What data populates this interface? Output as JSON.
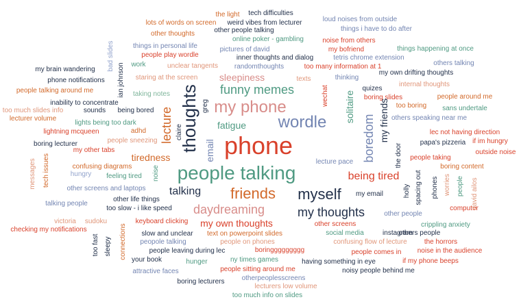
{
  "colors": {
    "red": "#d9412b",
    "orange": "#d2692a",
    "teal": "#4f9a82",
    "navy": "#22304a",
    "blue": "#7385b2",
    "pink": "#d88d8a",
    "salmon": "#e0967a",
    "sage": "#7fb59b",
    "gray": "#a0a0a0",
    "lightblue": "#92a3cc"
  },
  "words": [
    {
      "text": "the light",
      "color": "orange"
    },
    {
      "text": "tech difficulties",
      "color": "navy"
    },
    {
      "text": "loud noises from outside",
      "color": "blue"
    },
    {
      "text": "lots of words on screen",
      "color": "orange"
    },
    {
      "text": "weird vibes from lecturer",
      "color": "navy"
    },
    {
      "text": "things i have to do after",
      "color": "blue"
    },
    {
      "text": "other thoughts",
      "color": "orange"
    },
    {
      "text": "other people talking",
      "color": "navy"
    },
    {
      "text": "online poker - gambling",
      "color": "teal"
    },
    {
      "text": "noise from others",
      "color": "red"
    },
    {
      "text": "things in personal life",
      "color": "blue"
    },
    {
      "text": "pictures of david",
      "color": "blue"
    },
    {
      "text": "my bofriend",
      "color": "red"
    },
    {
      "text": "things happening at once",
      "color": "teal"
    },
    {
      "text": "people play wordle",
      "color": "red"
    },
    {
      "text": "inner thoughts and dialog",
      "color": "navy"
    },
    {
      "text": "tetris chrome extension",
      "color": "blue"
    },
    {
      "text": "work",
      "color": "teal"
    },
    {
      "text": "unclear tangents",
      "color": "salmon"
    },
    {
      "text": "randomthoughts",
      "color": "blue"
    },
    {
      "text": "too many information at 1",
      "color": "red"
    },
    {
      "text": "others talking",
      "color": "blue"
    },
    {
      "text": "my brain wandering",
      "color": "navy"
    },
    {
      "text": "my own drifting thoughts",
      "color": "navy"
    },
    {
      "text": "staring at the screen",
      "color": "salmon"
    },
    {
      "text": "sleepiness",
      "color": "pink"
    },
    {
      "text": "texts",
      "color": "salmon"
    },
    {
      "text": "thinking",
      "color": "blue"
    },
    {
      "text": "phone notifications",
      "color": "navy"
    },
    {
      "text": "internal thoughts",
      "color": "salmon"
    },
    {
      "text": "people talking around me",
      "color": "orange"
    },
    {
      "text": "funny memes",
      "color": "teal"
    },
    {
      "text": "quizes",
      "color": "navy"
    },
    {
      "text": "taking notes",
      "color": "sage"
    },
    {
      "text": "boring slides",
      "color": "red"
    },
    {
      "text": "people around me",
      "color": "orange"
    },
    {
      "text": "inability to concentrate",
      "color": "navy"
    },
    {
      "text": "my phone",
      "color": "pink"
    },
    {
      "text": "too boring",
      "color": "orange"
    },
    {
      "text": "too much slides info",
      "color": "salmon"
    },
    {
      "text": "sounds",
      "color": "navy"
    },
    {
      "text": "being bored",
      "color": "navy"
    },
    {
      "text": "sans undertale",
      "color": "teal"
    },
    {
      "text": "lecturer volume",
      "color": "orange"
    },
    {
      "text": "wordle",
      "color": "blue"
    },
    {
      "text": "others speaking near me",
      "color": "blue"
    },
    {
      "text": "lights being too dark",
      "color": "teal"
    },
    {
      "text": "fatigue",
      "color": "teal"
    },
    {
      "text": "lightning mcqueen",
      "color": "red"
    },
    {
      "text": "adhd",
      "color": "orange"
    },
    {
      "text": "lec not having direction",
      "color": "red"
    },
    {
      "text": "phone",
      "color": "red"
    },
    {
      "text": "people sneezing",
      "color": "salmon"
    },
    {
      "text": "papa's pizzeria",
      "color": "navy"
    },
    {
      "text": "if im hungry",
      "color": "red"
    },
    {
      "text": "boring lecturer",
      "color": "navy"
    },
    {
      "text": "my other tabs",
      "color": "red"
    },
    {
      "text": "outside noise",
      "color": "red"
    },
    {
      "text": "tiredness",
      "color": "orange"
    },
    {
      "text": "people taking",
      "color": "red"
    },
    {
      "text": "lecture pace",
      "color": "blue"
    },
    {
      "text": "confusing diagrams",
      "color": "orange"
    },
    {
      "text": "boring content",
      "color": "orange"
    },
    {
      "text": "people talking",
      "color": "teal"
    },
    {
      "text": "hungry",
      "color": "lightblue"
    },
    {
      "text": "feeling tired",
      "color": "teal"
    },
    {
      "text": "being tired",
      "color": "red"
    },
    {
      "text": "other screens and laptops",
      "color": "blue"
    },
    {
      "text": "talking",
      "color": "navy"
    },
    {
      "text": "friends",
      "color": "orange"
    },
    {
      "text": "myself",
      "color": "navy"
    },
    {
      "text": "other life things",
      "color": "navy"
    },
    {
      "text": "my email",
      "color": "navy"
    },
    {
      "text": "talking people",
      "color": "blue"
    },
    {
      "text": "too slow - i like speed",
      "color": "navy"
    },
    {
      "text": "daydreaming",
      "color": "pink"
    },
    {
      "text": "my thoughts",
      "color": "navy"
    },
    {
      "text": "computer",
      "color": "red"
    },
    {
      "text": "other people",
      "color": "blue"
    },
    {
      "text": "victoria",
      "color": "salmon"
    },
    {
      "text": "sudoku",
      "color": "salmon"
    },
    {
      "text": "keyboard clicking",
      "color": "red"
    },
    {
      "text": "my own thoughts",
      "color": "red"
    },
    {
      "text": "other screens",
      "color": "red"
    },
    {
      "text": "crippling anxiety",
      "color": "teal"
    },
    {
      "text": "checking my notifications",
      "color": "red"
    },
    {
      "text": "slow and unclear",
      "color": "navy"
    },
    {
      "text": "text on powerpoint slides",
      "color": "orange"
    },
    {
      "text": "social media",
      "color": "teal"
    },
    {
      "text": "instagram",
      "color": "navy"
    },
    {
      "text": "others people",
      "color": "navy"
    },
    {
      "text": "peopole talking",
      "color": "blue"
    },
    {
      "text": "people on phones",
      "color": "salmon"
    },
    {
      "text": "confusing flow of lecture",
      "color": "salmon"
    },
    {
      "text": "the horrors",
      "color": "red"
    },
    {
      "text": "people leaving during lec",
      "color": "navy"
    },
    {
      "text": "boringgggggggg",
      "color": "red"
    },
    {
      "text": "people comes in",
      "color": "red"
    },
    {
      "text": "noise in the audience",
      "color": "red"
    },
    {
      "text": "your book",
      "color": "navy"
    },
    {
      "text": "hunger",
      "color": "teal"
    },
    {
      "text": "ny times games",
      "color": "teal"
    },
    {
      "text": "having something in eye",
      "color": "navy"
    },
    {
      "text": "if my phone beeps",
      "color": "red"
    },
    {
      "text": "attractive faces",
      "color": "blue"
    },
    {
      "text": "people sitting around me",
      "color": "red"
    },
    {
      "text": "noisy people behind me",
      "color": "navy"
    },
    {
      "text": "otherpeoplesscreens",
      "color": "blue"
    },
    {
      "text": "boring lecturers",
      "color": "navy"
    },
    {
      "text": "lecturers low volume",
      "color": "salmon"
    },
    {
      "text": "too much info on slides",
      "color": "teal"
    },
    {
      "text": "bad slides",
      "color": "lightblue"
    },
    {
      "text": "ian johnson",
      "color": "navy"
    },
    {
      "text": "thoughts",
      "color": "navy"
    },
    {
      "text": "lecture",
      "color": "orange"
    },
    {
      "text": "greg",
      "color": "navy"
    },
    {
      "text": "email",
      "color": "blue"
    },
    {
      "text": "claire",
      "color": "navy"
    },
    {
      "text": "wechat",
      "color": "red"
    },
    {
      "text": "solitaire",
      "color": "teal"
    },
    {
      "text": "boredom",
      "color": "blue"
    },
    {
      "text": "my friends",
      "color": "navy"
    },
    {
      "text": "the door",
      "color": "navy"
    },
    {
      "text": "messages",
      "color": "salmon"
    },
    {
      "text": "tech issues",
      "color": "orange"
    },
    {
      "text": "noise",
      "color": "teal"
    },
    {
      "text": "holly",
      "color": "navy"
    },
    {
      "text": "spacing out",
      "color": "navy"
    },
    {
      "text": "phones",
      "color": "navy"
    },
    {
      "text": "worries",
      "color": "salmon"
    },
    {
      "text": "people",
      "color": "teal"
    },
    {
      "text": "david ailos",
      "color": "salmon"
    },
    {
      "text": "too fast",
      "color": "navy"
    },
    {
      "text": "sleepy",
      "color": "navy"
    },
    {
      "text": "connections",
      "color": "orange"
    }
  ]
}
